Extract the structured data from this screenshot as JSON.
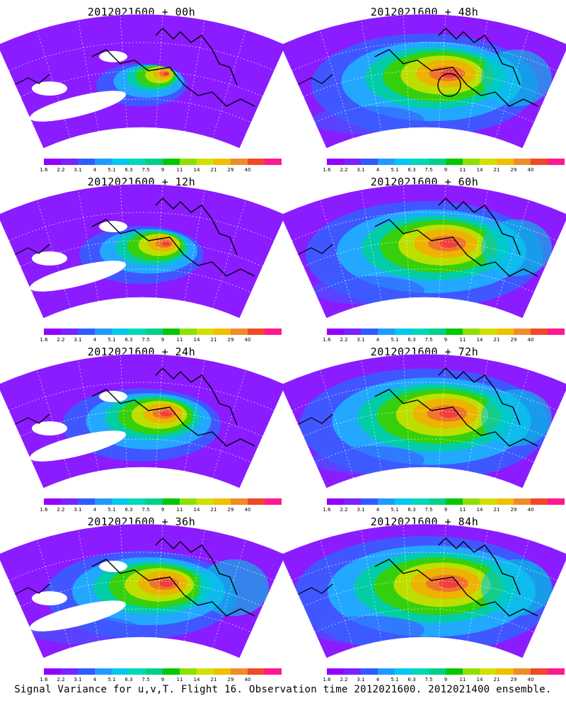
{
  "panels": [
    {
      "title": "2012021600 + 00h",
      "intensity": 0.15,
      "hasBlanks": true
    },
    {
      "title": "2012021600 + 48h",
      "intensity": 0.75,
      "hasBlanks": false,
      "circle": true
    },
    {
      "title": "2012021600 + 12h",
      "intensity": 0.3,
      "hasBlanks": true
    },
    {
      "title": "2012021600 + 60h",
      "intensity": 0.8,
      "hasBlanks": false
    },
    {
      "title": "2012021600 + 24h",
      "intensity": 0.45,
      "hasBlanks": true
    },
    {
      "title": "2012021600 + 72h",
      "intensity": 0.85,
      "hasBlanks": false
    },
    {
      "title": "2012021600 + 36h",
      "intensity": 0.6,
      "hasBlanks": true
    },
    {
      "title": "2012021600 + 84h",
      "intensity": 0.9,
      "hasBlanks": false
    }
  ],
  "colorbar": {
    "colors": [
      "#9400ff",
      "#7b22ff",
      "#2f5cff",
      "#1f9bff",
      "#00c8f0",
      "#00d8b8",
      "#00d08a",
      "#00c800",
      "#8ee000",
      "#d4e000",
      "#f0c000",
      "#f08c28",
      "#f04828",
      "#ff1890"
    ],
    "labels": [
      "1.6",
      "2.2",
      "3.1",
      "4",
      "5.1",
      "6.3",
      "7.5",
      "9",
      "11",
      "14",
      "21",
      "29",
      "40"
    ]
  },
  "caption": "Signal Variance for u,v,T. Flight 16. Observation time 2012021600. 2012021400 ensemble."
}
